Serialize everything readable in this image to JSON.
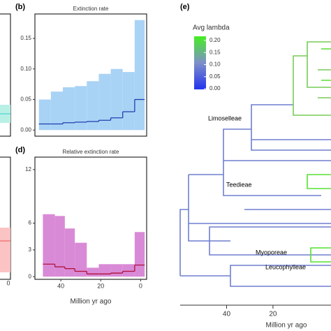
{
  "partial_panels": {
    "c_tick": "0"
  },
  "panel_b": {
    "label": "(b)",
    "title": "Extinction rate",
    "bins": [
      51,
      45,
      39,
      33,
      27,
      21,
      15,
      9,
      3,
      -2
    ],
    "upper": [
      0.05,
      0.063,
      0.07,
      0.072,
      0.08,
      0.092,
      0.1,
      0.095,
      0.18
    ],
    "lower": [
      0,
      0,
      0,
      0,
      0,
      0,
      0,
      0,
      0
    ],
    "median": [
      0.01,
      0.01,
      0.012,
      0.013,
      0.014,
      0.016,
      0.02,
      0.03,
      0.05
    ],
    "band_color": "#a9d3f5",
    "line_color": "#1f3fb0",
    "xlim": [
      53,
      -3
    ],
    "ylim": [
      -0.01,
      0.19
    ],
    "yticks": [
      "0.00",
      "0.05",
      "0.10",
      "0.15"
    ],
    "ytick_values": [
      0,
      0.05,
      0.1,
      0.15
    ]
  },
  "panel_d": {
    "label": "(d)",
    "title": "Relative extinction rate",
    "bins": [
      49,
      43,
      38,
      33,
      27,
      21,
      15,
      9,
      3,
      -2
    ],
    "upper": [
      7,
      6.8,
      5.4,
      3.8,
      1,
      1.4,
      1.4,
      1.4,
      5
    ],
    "lower": [
      0,
      0,
      0,
      0,
      0,
      0,
      0,
      0,
      0
    ],
    "median": [
      1.4,
      1.1,
      0.9,
      0.6,
      0.3,
      0.3,
      0.4,
      0.6,
      1.3
    ],
    "band_color": "#d98ad6",
    "line_color": "#b0103a",
    "xlim": [
      53,
      -3
    ],
    "ylim": [
      -0.3,
      13.4
    ],
    "yticks": [
      0,
      3,
      6,
      12
    ],
    "xticks": [
      40,
      20,
      0
    ],
    "xlabel": "Million yr ago"
  },
  "panel_e": {
    "label": "(e)",
    "legend_title": "Avg lambda",
    "legend_ticks": [
      {
        "value": 0.2,
        "label": "0.20"
      },
      {
        "value": 0.15,
        "label": "0.15"
      },
      {
        "value": 0.1,
        "label": "0.10"
      },
      {
        "value": 0.05,
        "label": "0.05"
      },
      {
        "value": 0,
        "label": "0.00"
      }
    ],
    "clades": [
      "Limoselleae",
      "Teedieae",
      "Myoporeae",
      "Leucophylleae"
    ],
    "xticks": [
      40,
      20
    ],
    "xlim": [
      60,
      -5
    ],
    "xlabel": "Million yr ago"
  }
}
